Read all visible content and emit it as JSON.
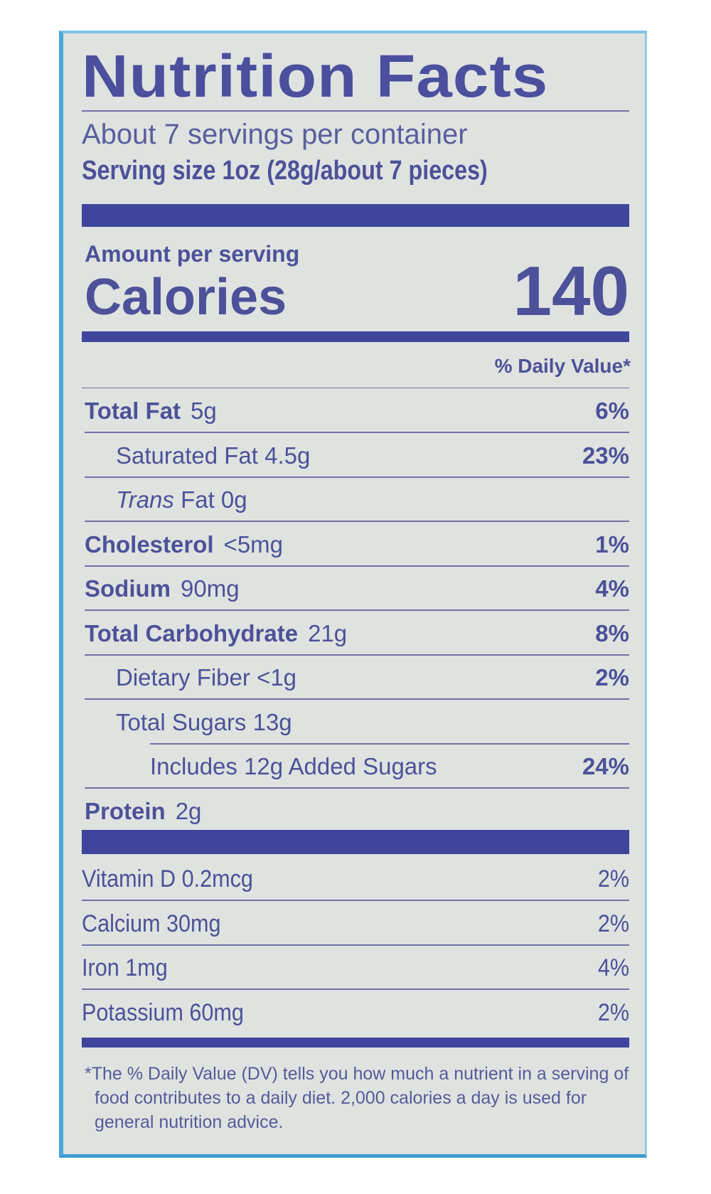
{
  "label": {
    "title": "Nutrition Facts",
    "servings_per_container": "About 7 servings per container",
    "serving_size": "Serving size 1oz (28g/about 7 pieces)",
    "amount_per_serving": "Amount per serving",
    "calories_label": "Calories",
    "calories_value": "140",
    "daily_value_header": "% Daily Value*",
    "nutrients": [
      {
        "name": "Total Fat",
        "amount": "5g",
        "dv": "6%",
        "bold": true,
        "indent": 0
      },
      {
        "name": "",
        "amount": "Saturated Fat 4.5g",
        "dv": "23%",
        "bold": false,
        "indent": 1
      },
      {
        "name": "",
        "italic": "Trans",
        "amount": "Fat 0g",
        "dv": "",
        "bold": false,
        "indent": 1
      },
      {
        "name": "Cholesterol",
        "amount": "<5mg",
        "dv": "1%",
        "bold": true,
        "indent": 0
      },
      {
        "name": "Sodium",
        "amount": "90mg",
        "dv": "4%",
        "bold": true,
        "indent": 0
      },
      {
        "name": "Total Carbohydrate",
        "amount": "21g",
        "dv": "8%",
        "bold": true,
        "indent": 0
      },
      {
        "name": "",
        "amount": "Dietary Fiber <1g",
        "dv": "2%",
        "bold": false,
        "indent": 1
      },
      {
        "name": "",
        "amount": "Total Sugars 13g",
        "dv": "",
        "bold": false,
        "indent": 1
      },
      {
        "name": "",
        "amount": "Includes 12g Added Sugars",
        "dv": "24%",
        "bold": false,
        "indent": 2
      },
      {
        "name": "Protein",
        "amount": "2g",
        "dv": "",
        "bold": true,
        "indent": 0
      }
    ],
    "vitamins": [
      {
        "text": "Vitamin D 0.2mcg",
        "dv": "2%"
      },
      {
        "text": "Calcium 30mg",
        "dv": "2%"
      },
      {
        "text": "Iron 1mg",
        "dv": "4%"
      },
      {
        "text": "Potassium 60mg",
        "dv": "2%"
      }
    ],
    "footnote": "*The % Daily Value (DV) tells you how much a nutrient in a serving of food contributes to a daily diet. 2,000 calories a day is used for general nutrition advice."
  },
  "colors": {
    "text": "#4d5199",
    "bars": "#3f459c",
    "background": "#dfe3e0",
    "package_edge": "#4aa8d9"
  }
}
